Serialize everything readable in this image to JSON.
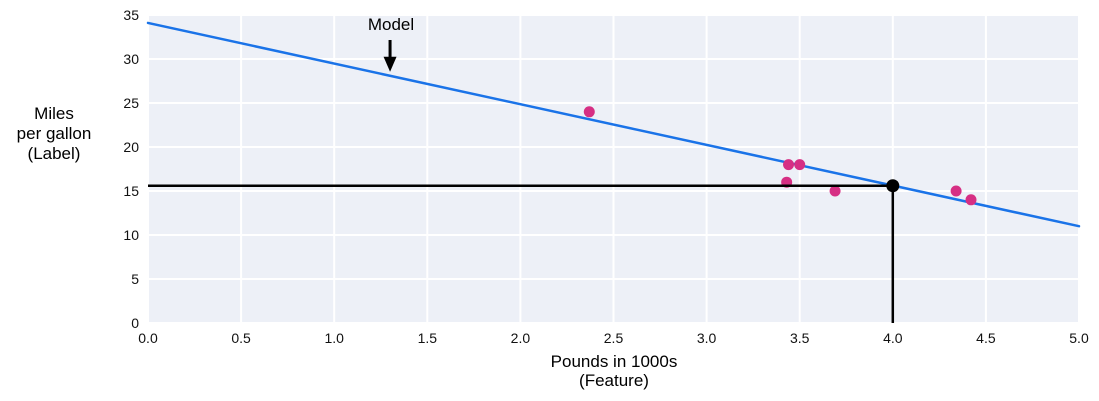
{
  "chart_data": {
    "type": "scatter",
    "title": "",
    "xlabel_lines": [
      "Pounds in 1000s",
      "(Feature)"
    ],
    "ylabel_lines": [
      "Miles",
      "per gallon",
      "(Label)"
    ],
    "xlim": [
      0,
      5
    ],
    "ylim": [
      0,
      35
    ],
    "xticks": [
      0,
      0.5,
      1,
      1.5,
      2,
      2.5,
      3,
      3.5,
      4,
      4.5,
      5
    ],
    "xtick_labels": [
      "0.0",
      "0.5",
      "1.0",
      "1.5",
      "2.0",
      "2.5",
      "3.0",
      "3.5",
      "4.0",
      "4.5",
      "5.0"
    ],
    "yticks": [
      0,
      5,
      10,
      15,
      20,
      25,
      30,
      35
    ],
    "ytick_labels": [
      "0",
      "5",
      "10",
      "15",
      "20",
      "25",
      "30",
      "35"
    ],
    "grid": true,
    "legend": false,
    "points": [
      {
        "x": 2.37,
        "y": 24
      },
      {
        "x": 3.43,
        "y": 16
      },
      {
        "x": 3.44,
        "y": 18
      },
      {
        "x": 3.5,
        "y": 18
      },
      {
        "x": 3.69,
        "y": 15
      },
      {
        "x": 4.34,
        "y": 15
      },
      {
        "x": 4.42,
        "y": 14
      }
    ],
    "model_line": {
      "label": "Model",
      "x_start": 0,
      "y_start": 34.1,
      "x_end": 5,
      "y_end": 11.0,
      "annotation_arrow_x": 1.3
    },
    "prediction": {
      "x": 4.0,
      "y": 15.6
    },
    "colors": {
      "model_line": "#1a73e8",
      "points": "#d62f84",
      "prediction": "#000000",
      "plot_background": "#edf0f7",
      "gridlines": "#ffffff"
    }
  }
}
